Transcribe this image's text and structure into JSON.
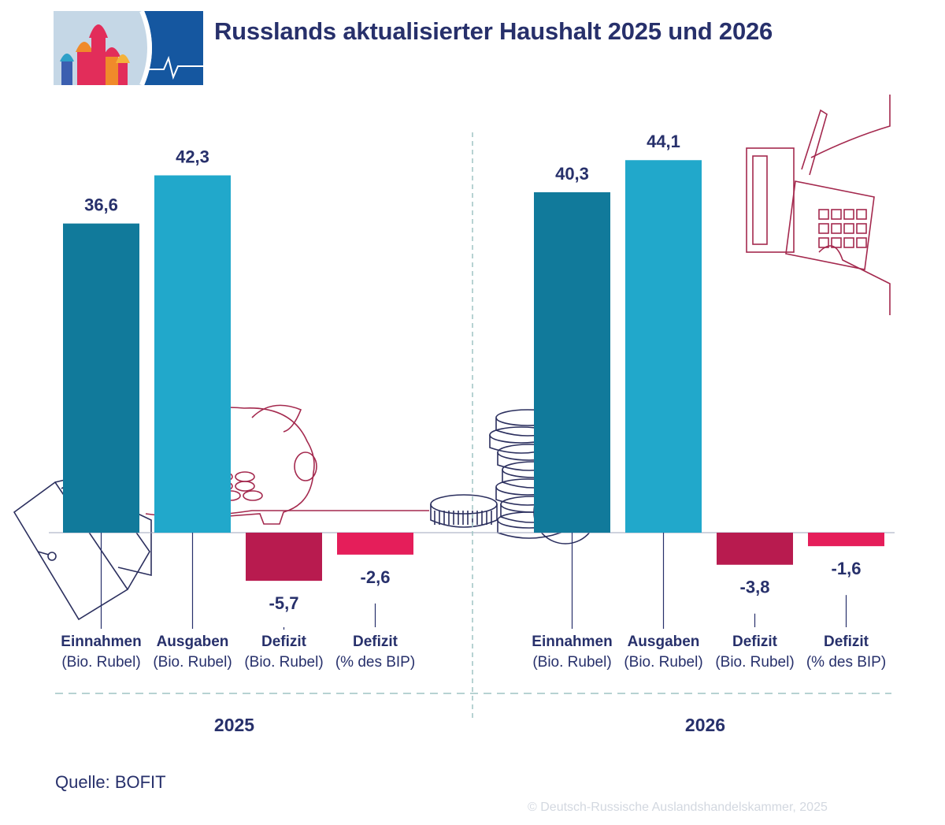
{
  "title": "Russlands aktualisierter Haushalt 2025 und 2026",
  "source": "Quelle: BOFIT",
  "copyright": "© Deutsch-Russische Auslandshandelskammer, 2025",
  "colors": {
    "einnahmen": "#117a9b",
    "ausgaben": "#21a8cb",
    "defizit_rubel": "#b81b4f",
    "defizit_bip": "#e51e5a",
    "text": "#27306b",
    "illustration": "#2b2f5e",
    "illustration_accent": "#a4294e"
  },
  "icons": [
    "kremlin-domes-logo",
    "wallet-icon",
    "piggy-bank-icon",
    "coin-stack-icon",
    "calculator-hands-icon"
  ],
  "chart_data": {
    "type": "bar",
    "categories": [
      "Einnahmen|(Bio. Rubel)",
      "Ausgaben|(Bio. Rubel)",
      "Defizit|(Bio. Rubel)",
      "Defizit|(% des BIP)"
    ],
    "groups": [
      {
        "label": "2025",
        "values": [
          36.6,
          42.3,
          -5.7,
          -2.6
        ],
        "value_labels": [
          "36,6",
          "42,3",
          "-5,7",
          "-2,6"
        ]
      },
      {
        "label": "2026",
        "values": [
          40.3,
          44.1,
          -3.8,
          -1.6
        ],
        "value_labels": [
          "40,3",
          "44,1",
          "-3,8",
          "-1,6"
        ]
      }
    ],
    "ylim": [
      -10,
      50
    ],
    "grid": false,
    "legend": "none"
  }
}
